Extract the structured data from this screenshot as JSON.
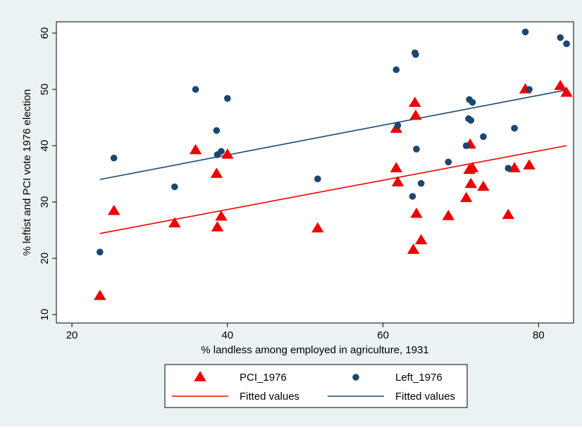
{
  "chart_data": {
    "type": "scatter",
    "xlabel": "% landless among employed in agriculture, 1931",
    "ylabel": "% leftist and PCI vote 1976 election",
    "xlim": [
      18,
      84.5
    ],
    "ylim": [
      8.5,
      62
    ],
    "x_ticks": [
      20,
      40,
      60,
      80
    ],
    "y_ticks": [
      10,
      20,
      30,
      40,
      50,
      60
    ],
    "grid": false,
    "legend_position": "bottom",
    "series": [
      {
        "name": "PCI_1976",
        "kind": "scatter",
        "marker": "triangle",
        "color": "#ee0000",
        "points": [
          [
            23.6,
            13.3
          ],
          [
            25.4,
            28.4
          ],
          [
            33.2,
            26.2
          ],
          [
            35.9,
            39.2
          ],
          [
            38.6,
            35.0
          ],
          [
            38.7,
            25.5
          ],
          [
            39.2,
            27.4
          ],
          [
            40.0,
            38.4
          ],
          [
            51.6,
            25.3
          ],
          [
            61.7,
            43.0
          ],
          [
            61.7,
            36.0
          ],
          [
            61.9,
            33.5
          ],
          [
            63.9,
            21.5
          ],
          [
            64.1,
            47.6
          ],
          [
            64.2,
            45.3
          ],
          [
            64.3,
            27.9
          ],
          [
            64.9,
            23.2
          ],
          [
            68.4,
            27.5
          ],
          [
            70.7,
            30.7
          ],
          [
            71.1,
            35.7
          ],
          [
            71.2,
            40.2
          ],
          [
            71.3,
            33.2
          ],
          [
            71.5,
            36.0
          ],
          [
            72.9,
            32.7
          ],
          [
            76.1,
            27.7
          ],
          [
            76.9,
            36.0
          ],
          [
            78.3,
            50.0
          ],
          [
            78.8,
            36.5
          ],
          [
            82.8,
            50.6
          ],
          [
            83.6,
            49.4
          ]
        ]
      },
      {
        "name": "Left_1976",
        "kind": "scatter",
        "marker": "circle",
        "color": "#1a476f",
        "points": [
          [
            23.6,
            21.1
          ],
          [
            25.4,
            37.8
          ],
          [
            33.2,
            32.7
          ],
          [
            35.9,
            50.0
          ],
          [
            38.6,
            42.7
          ],
          [
            38.7,
            38.4
          ],
          [
            39.2,
            39.0
          ],
          [
            40.0,
            48.4
          ],
          [
            51.6,
            34.1
          ],
          [
            61.7,
            53.5
          ],
          [
            61.9,
            43.6
          ],
          [
            63.8,
            31.0
          ],
          [
            64.1,
            56.5
          ],
          [
            64.2,
            56.2
          ],
          [
            64.3,
            39.4
          ],
          [
            64.9,
            33.3
          ],
          [
            68.4,
            37.1
          ],
          [
            70.7,
            40.0
          ],
          [
            71.0,
            44.8
          ],
          [
            71.1,
            48.2
          ],
          [
            71.3,
            44.5
          ],
          [
            71.5,
            47.7
          ],
          [
            72.9,
            41.6
          ],
          [
            76.1,
            36.0
          ],
          [
            76.9,
            43.1
          ],
          [
            78.3,
            60.2
          ],
          [
            78.8,
            50.0
          ],
          [
            82.8,
            59.2
          ],
          [
            83.6,
            58.1
          ]
        ]
      },
      {
        "name": "Fitted values",
        "kind": "line",
        "color": "#ee0000",
        "points": [
          [
            23.6,
            24.4
          ],
          [
            83.6,
            40.0
          ]
        ]
      },
      {
        "name": "Fitted values",
        "kind": "line",
        "color": "#1a476f",
        "points": [
          [
            23.6,
            34.0
          ],
          [
            83.6,
            49.9
          ]
        ]
      }
    ]
  }
}
